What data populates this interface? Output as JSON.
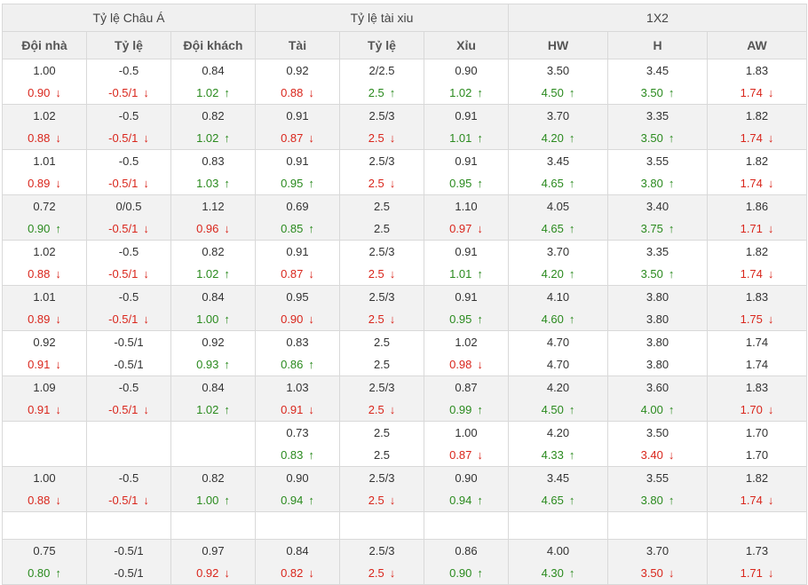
{
  "header": {
    "groups": [
      "Tỷ lệ Châu Á",
      "Tỷ lệ tài xiu",
      "1X2"
    ],
    "columns": [
      "Đội nhà",
      "Tỷ lệ",
      "Đội khách",
      "Tài",
      "Tỷ lệ",
      "Xỉu",
      "HW",
      "H",
      "AW"
    ]
  },
  "colors": {
    "up": "#2a8a1e",
    "down": "#d9261c",
    "header_bg": "#f0f0f0",
    "stripe_bg": "#f2f2f2"
  },
  "icons": {
    "up": "up-arrow-icon",
    "down": "down-arrow-icon"
  },
  "rows": [
    [
      {
        "o": "1.00",
        "c": "0.90",
        "d": "down"
      },
      {
        "o": "-0.5",
        "c": "-0.5/1",
        "d": "down"
      },
      {
        "o": "0.84",
        "c": "1.02",
        "d": "up"
      },
      {
        "o": "0.92",
        "c": "0.88",
        "d": "down"
      },
      {
        "o": "2/2.5",
        "c": "2.5",
        "d": "up"
      },
      {
        "o": "0.90",
        "c": "1.02",
        "d": "up"
      },
      {
        "o": "3.50",
        "c": "4.50",
        "d": "up"
      },
      {
        "o": "3.45",
        "c": "3.50",
        "d": "up"
      },
      {
        "o": "1.83",
        "c": "1.74",
        "d": "down"
      }
    ],
    [
      {
        "o": "1.02",
        "c": "0.88",
        "d": "down"
      },
      {
        "o": "-0.5",
        "c": "-0.5/1",
        "d": "down"
      },
      {
        "o": "0.82",
        "c": "1.02",
        "d": "up"
      },
      {
        "o": "0.91",
        "c": "0.87",
        "d": "down"
      },
      {
        "o": "2.5/3",
        "c": "2.5",
        "d": "down"
      },
      {
        "o": "0.91",
        "c": "1.01",
        "d": "up"
      },
      {
        "o": "3.70",
        "c": "4.20",
        "d": "up"
      },
      {
        "o": "3.35",
        "c": "3.50",
        "d": "up"
      },
      {
        "o": "1.82",
        "c": "1.74",
        "d": "down"
      }
    ],
    [
      {
        "o": "1.01",
        "c": "0.89",
        "d": "down"
      },
      {
        "o": "-0.5",
        "c": "-0.5/1",
        "d": "down"
      },
      {
        "o": "0.83",
        "c": "1.03",
        "d": "up"
      },
      {
        "o": "0.91",
        "c": "0.95",
        "d": "up"
      },
      {
        "o": "2.5/3",
        "c": "2.5",
        "d": "down"
      },
      {
        "o": "0.91",
        "c": "0.95",
        "d": "up"
      },
      {
        "o": "3.45",
        "c": "4.65",
        "d": "up"
      },
      {
        "o": "3.55",
        "c": "3.80",
        "d": "up"
      },
      {
        "o": "1.82",
        "c": "1.74",
        "d": "down"
      }
    ],
    [
      {
        "o": "0.72",
        "c": "0.90",
        "d": "up"
      },
      {
        "o": "0/0.5",
        "c": "-0.5/1",
        "d": "down"
      },
      {
        "o": "1.12",
        "c": "0.96",
        "d": "down"
      },
      {
        "o": "0.69",
        "c": "0.85",
        "d": "up"
      },
      {
        "o": "2.5",
        "c": "2.5",
        "d": ""
      },
      {
        "o": "1.10",
        "c": "0.97",
        "d": "down"
      },
      {
        "o": "4.05",
        "c": "4.65",
        "d": "up"
      },
      {
        "o": "3.40",
        "c": "3.75",
        "d": "up"
      },
      {
        "o": "1.86",
        "c": "1.71",
        "d": "down"
      }
    ],
    [
      {
        "o": "1.02",
        "c": "0.88",
        "d": "down"
      },
      {
        "o": "-0.5",
        "c": "-0.5/1",
        "d": "down"
      },
      {
        "o": "0.82",
        "c": "1.02",
        "d": "up"
      },
      {
        "o": "0.91",
        "c": "0.87",
        "d": "down"
      },
      {
        "o": "2.5/3",
        "c": "2.5",
        "d": "down"
      },
      {
        "o": "0.91",
        "c": "1.01",
        "d": "up"
      },
      {
        "o": "3.70",
        "c": "4.20",
        "d": "up"
      },
      {
        "o": "3.35",
        "c": "3.50",
        "d": "up"
      },
      {
        "o": "1.82",
        "c": "1.74",
        "d": "down"
      }
    ],
    [
      {
        "o": "1.01",
        "c": "0.89",
        "d": "down"
      },
      {
        "o": "-0.5",
        "c": "-0.5/1",
        "d": "down"
      },
      {
        "o": "0.84",
        "c": "1.00",
        "d": "up"
      },
      {
        "o": "0.95",
        "c": "0.90",
        "d": "down"
      },
      {
        "o": "2.5/3",
        "c": "2.5",
        "d": "down"
      },
      {
        "o": "0.91",
        "c": "0.95",
        "d": "up"
      },
      {
        "o": "4.10",
        "c": "4.60",
        "d": "up"
      },
      {
        "o": "3.80",
        "c": "3.80",
        "d": ""
      },
      {
        "o": "1.83",
        "c": "1.75",
        "d": "down"
      }
    ],
    [
      {
        "o": "0.92",
        "c": "0.91",
        "d": "down"
      },
      {
        "o": "-0.5/1",
        "c": "-0.5/1",
        "d": ""
      },
      {
        "o": "0.92",
        "c": "0.93",
        "d": "up"
      },
      {
        "o": "0.83",
        "c": "0.86",
        "d": "up"
      },
      {
        "o": "2.5",
        "c": "2.5",
        "d": ""
      },
      {
        "o": "1.02",
        "c": "0.98",
        "d": "down"
      },
      {
        "o": "4.70",
        "c": "4.70",
        "d": ""
      },
      {
        "o": "3.80",
        "c": "3.80",
        "d": ""
      },
      {
        "o": "1.74",
        "c": "1.74",
        "d": ""
      }
    ],
    [
      {
        "o": "1.09",
        "c": "0.91",
        "d": "down"
      },
      {
        "o": "-0.5",
        "c": "-0.5/1",
        "d": "down"
      },
      {
        "o": "0.84",
        "c": "1.02",
        "d": "up"
      },
      {
        "o": "1.03",
        "c": "0.91",
        "d": "down"
      },
      {
        "o": "2.5/3",
        "c": "2.5",
        "d": "down"
      },
      {
        "o": "0.87",
        "c": "0.99",
        "d": "up"
      },
      {
        "o": "4.20",
        "c": "4.50",
        "d": "up"
      },
      {
        "o": "3.60",
        "c": "4.00",
        "d": "up"
      },
      {
        "o": "1.83",
        "c": "1.70",
        "d": "down"
      }
    ],
    [
      {
        "o": "",
        "c": "",
        "d": ""
      },
      {
        "o": "",
        "c": "",
        "d": ""
      },
      {
        "o": "",
        "c": "",
        "d": ""
      },
      {
        "o": "0.73",
        "c": "0.83",
        "d": "up"
      },
      {
        "o": "2.5",
        "c": "2.5",
        "d": ""
      },
      {
        "o": "1.00",
        "c": "0.87",
        "d": "down"
      },
      {
        "o": "4.20",
        "c": "4.33",
        "d": "up"
      },
      {
        "o": "3.50",
        "c": "3.40",
        "d": "down"
      },
      {
        "o": "1.70",
        "c": "1.70",
        "d": ""
      }
    ],
    [
      {
        "o": "1.00",
        "c": "0.88",
        "d": "down"
      },
      {
        "o": "-0.5",
        "c": "-0.5/1",
        "d": "down"
      },
      {
        "o": "0.82",
        "c": "1.00",
        "d": "up"
      },
      {
        "o": "0.90",
        "c": "0.94",
        "d": "up"
      },
      {
        "o": "2.5/3",
        "c": "2.5",
        "d": "down"
      },
      {
        "o": "0.90",
        "c": "0.94",
        "d": "up"
      },
      {
        "o": "3.45",
        "c": "4.65",
        "d": "up"
      },
      {
        "o": "3.55",
        "c": "3.80",
        "d": "up"
      },
      {
        "o": "1.82",
        "c": "1.74",
        "d": "down"
      }
    ],
    "empty",
    [
      {
        "o": "0.75",
        "c": "0.80",
        "d": "up"
      },
      {
        "o": "-0.5/1",
        "c": "-0.5/1",
        "d": ""
      },
      {
        "o": "0.97",
        "c": "0.92",
        "d": "down"
      },
      {
        "o": "0.84",
        "c": "0.82",
        "d": "down"
      },
      {
        "o": "2.5/3",
        "c": "2.5",
        "d": "down"
      },
      {
        "o": "0.86",
        "c": "0.90",
        "d": "up"
      },
      {
        "o": "4.00",
        "c": "4.30",
        "d": "up"
      },
      {
        "o": "3.70",
        "c": "3.50",
        "d": "down"
      },
      {
        "o": "1.73",
        "c": "1.71",
        "d": "down"
      }
    ]
  ]
}
